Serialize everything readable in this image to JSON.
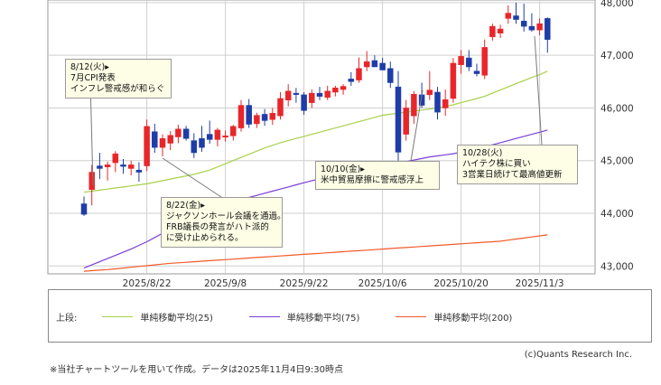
{
  "chart_data": {
    "type": "candlestick",
    "y_ticks": [
      "48,000",
      "47,000",
      "46,000",
      "45,000",
      "44,000",
      "43,000"
    ],
    "ylim": [
      42850,
      48050
    ],
    "x_ticks": [
      "2025/8/22",
      "2025/9/8",
      "2025/9/22",
      "2025/10/6",
      "2025/10/20",
      "2025/11/3"
    ],
    "x_tick_index": [
      8,
      18,
      28,
      38,
      48,
      58
    ],
    "n_bars": 60,
    "candles": [
      {
        "o": 44180,
        "h": 44320,
        "l": 43950,
        "c": 43980
      },
      {
        "o": 44450,
        "h": 44920,
        "l": 44150,
        "c": 44780
      },
      {
        "o": 44900,
        "h": 45150,
        "l": 44650,
        "c": 44850
      },
      {
        "o": 44880,
        "h": 44980,
        "l": 44620,
        "c": 44920
      },
      {
        "o": 44960,
        "h": 45180,
        "l": 44780,
        "c": 45130
      },
      {
        "o": 44920,
        "h": 45030,
        "l": 44750,
        "c": 44890
      },
      {
        "o": 44850,
        "h": 45000,
        "l": 44720,
        "c": 44920
      },
      {
        "o": 44820,
        "h": 44970,
        "l": 44600,
        "c": 44780
      },
      {
        "o": 44900,
        "h": 45780,
        "l": 44800,
        "c": 45650
      },
      {
        "o": 45550,
        "h": 45700,
        "l": 45150,
        "c": 45250
      },
      {
        "o": 45250,
        "h": 45500,
        "l": 45080,
        "c": 45420
      },
      {
        "o": 45330,
        "h": 45560,
        "l": 45200,
        "c": 45480
      },
      {
        "o": 45450,
        "h": 45680,
        "l": 45330,
        "c": 45600
      },
      {
        "o": 45600,
        "h": 45660,
        "l": 45380,
        "c": 45420
      },
      {
        "o": 45380,
        "h": 45520,
        "l": 45050,
        "c": 45150
      },
      {
        "o": 45420,
        "h": 45660,
        "l": 45170,
        "c": 45250
      },
      {
        "o": 45500,
        "h": 45760,
        "l": 45320,
        "c": 45400
      },
      {
        "o": 45400,
        "h": 45620,
        "l": 45270,
        "c": 45580
      },
      {
        "o": 45450,
        "h": 45570,
        "l": 45360,
        "c": 45470
      },
      {
        "o": 45470,
        "h": 45680,
        "l": 45380,
        "c": 45650
      },
      {
        "o": 45620,
        "h": 46150,
        "l": 45550,
        "c": 46050
      },
      {
        "o": 46050,
        "h": 46170,
        "l": 45620,
        "c": 45690
      },
      {
        "o": 45700,
        "h": 45910,
        "l": 45620,
        "c": 45860
      },
      {
        "o": 45880,
        "h": 45980,
        "l": 45660,
        "c": 45760
      },
      {
        "o": 45780,
        "h": 46000,
        "l": 45680,
        "c": 45900
      },
      {
        "o": 45850,
        "h": 46300,
        "l": 45780,
        "c": 46180
      },
      {
        "o": 46150,
        "h": 46450,
        "l": 46030,
        "c": 46320
      },
      {
        "o": 46280,
        "h": 46380,
        "l": 46100,
        "c": 46270
      },
      {
        "o": 46250,
        "h": 46300,
        "l": 45870,
        "c": 45950
      },
      {
        "o": 46100,
        "h": 46350,
        "l": 46000,
        "c": 46280
      },
      {
        "o": 46280,
        "h": 46400,
        "l": 46150,
        "c": 46220
      },
      {
        "o": 46200,
        "h": 46420,
        "l": 46150,
        "c": 46320
      },
      {
        "o": 46300,
        "h": 46420,
        "l": 46220,
        "c": 46380
      },
      {
        "o": 46350,
        "h": 46450,
        "l": 46250,
        "c": 46410
      },
      {
        "o": 46550,
        "h": 46680,
        "l": 46420,
        "c": 46500
      },
      {
        "o": 46530,
        "h": 46960,
        "l": 46480,
        "c": 46750
      },
      {
        "o": 46780,
        "h": 47080,
        "l": 46700,
        "c": 46880
      },
      {
        "o": 46900,
        "h": 47000,
        "l": 46780,
        "c": 46780
      },
      {
        "o": 46850,
        "h": 46950,
        "l": 46720,
        "c": 46720
      },
      {
        "o": 46750,
        "h": 46880,
        "l": 46380,
        "c": 46480
      },
      {
        "o": 46400,
        "h": 46700,
        "l": 45000,
        "c": 45160
      },
      {
        "o": 45500,
        "h": 46150,
        "l": 45380,
        "c": 46000
      },
      {
        "o": 45850,
        "h": 46320,
        "l": 45700,
        "c": 46260
      },
      {
        "o": 46250,
        "h": 46480,
        "l": 46000,
        "c": 46050
      },
      {
        "o": 46250,
        "h": 46700,
        "l": 46150,
        "c": 46340
      },
      {
        "o": 46300,
        "h": 46400,
        "l": 45780,
        "c": 45920
      },
      {
        "o": 46000,
        "h": 46350,
        "l": 45850,
        "c": 46160
      },
      {
        "o": 46180,
        "h": 46950,
        "l": 46100,
        "c": 46850
      },
      {
        "o": 46820,
        "h": 47100,
        "l": 46650,
        "c": 46980
      },
      {
        "o": 46950,
        "h": 47100,
        "l": 46700,
        "c": 46780
      },
      {
        "o": 46700,
        "h": 46840,
        "l": 46600,
        "c": 46650
      },
      {
        "o": 46620,
        "h": 47300,
        "l": 46550,
        "c": 47150
      },
      {
        "o": 47350,
        "h": 47600,
        "l": 47280,
        "c": 47550
      },
      {
        "o": 47420,
        "h": 47580,
        "l": 47330,
        "c": 47500
      },
      {
        "o": 47700,
        "h": 47950,
        "l": 47600,
        "c": 47800
      },
      {
        "o": 47750,
        "h": 48000,
        "l": 47600,
        "c": 47680
      },
      {
        "o": 47650,
        "h": 47980,
        "l": 47450,
        "c": 47550
      },
      {
        "o": 47550,
        "h": 47800,
        "l": 47450,
        "c": 47480
      },
      {
        "o": 47480,
        "h": 47700,
        "l": 47380,
        "c": 47600
      },
      {
        "o": 47700,
        "h": 47720,
        "l": 47050,
        "c": 47300
      }
    ],
    "sma25": [
      44400,
      44420,
      44440,
      44460,
      44480,
      44500,
      44520,
      44540,
      44560,
      44590,
      44620,
      44650,
      44680,
      44710,
      44740,
      44780,
      44820,
      44880,
      44940,
      45000,
      45060,
      45120,
      45180,
      45240,
      45290,
      45340,
      45380,
      45420,
      45460,
      45500,
      45540,
      45580,
      45620,
      45660,
      45700,
      45740,
      45780,
      45820,
      45860,
      45880,
      45900,
      45920,
      45940,
      45960,
      45980,
      46000,
      46030,
      46060,
      46100,
      46140,
      46180,
      46220,
      46280,
      46340,
      46400,
      46460,
      46520,
      46580,
      46630,
      46700
    ],
    "sma75": [
      42960,
      43020,
      43080,
      43140,
      43200,
      43260,
      43320,
      43390,
      43460,
      43540,
      43620,
      43700,
      43780,
      43860,
      43930,
      44000,
      44060,
      44110,
      44160,
      44210,
      44260,
      44300,
      44340,
      44380,
      44420,
      44460,
      44500,
      44540,
      44580,
      44620,
      44650,
      44680,
      44710,
      44740,
      44770,
      44800,
      44830,
      44860,
      44890,
      44920,
      44950,
      44980,
      45010,
      45040,
      45070,
      45090,
      45110,
      45130,
      45160,
      45190,
      45220,
      45260,
      45300,
      45340,
      45380,
      45420,
      45460,
      45500,
      45540,
      45580
    ],
    "sma200": [
      42900,
      42910,
      42920,
      42930,
      42945,
      42960,
      42975,
      42990,
      43005,
      43020,
      43035,
      43050,
      43060,
      43070,
      43080,
      43090,
      43100,
      43110,
      43120,
      43130,
      43140,
      43150,
      43160,
      43170,
      43180,
      43190,
      43200,
      43210,
      43220,
      43230,
      43240,
      43250,
      43260,
      43270,
      43280,
      43290,
      43300,
      43310,
      43320,
      43330,
      43340,
      43350,
      43360,
      43370,
      43380,
      43390,
      43400,
      43410,
      43420,
      43430,
      43440,
      43450,
      43460,
      43470,
      43490,
      43510,
      43530,
      43550,
      43570,
      43590
    ],
    "colors": {
      "up": "#e8262a",
      "down": "#1f3da8",
      "sma25": "#a7d14a",
      "sma75": "#7a3fd6",
      "sma200": "#f05a28"
    },
    "grid": true
  },
  "annotations": [
    {
      "lines": [
        "8/12(火)▸",
        "7月CPI発表",
        "インフレ警戒感が和らぐ"
      ]
    },
    {
      "lines": [
        "8/22(金)▸",
        "ジャクソンホール会議を通過。",
        "FRB議長の発言がハト派的",
        "に受け止められる。"
      ]
    },
    {
      "lines": [
        "10/10(金)▸",
        "米中貿易摩擦に警戒感浮上"
      ]
    },
    {
      "lines": [
        "10/28(火)",
        "ハイテク株に買い",
        "3営業日続けて最高値更新"
      ]
    }
  ],
  "legend": {
    "prefix": "上段:",
    "items": [
      {
        "label": "単純移動平均(25)",
        "color": "#a7d14a"
      },
      {
        "label": "単純移動平均(75)",
        "color": "#7a3fd6"
      },
      {
        "label": "単純移動平均(200)",
        "color": "#f05a28"
      }
    ]
  },
  "credit": "(c)Quants Research Inc.",
  "footnote": "※当社チャートツールを用いて作成。データは2025年11月4日9:30時点"
}
